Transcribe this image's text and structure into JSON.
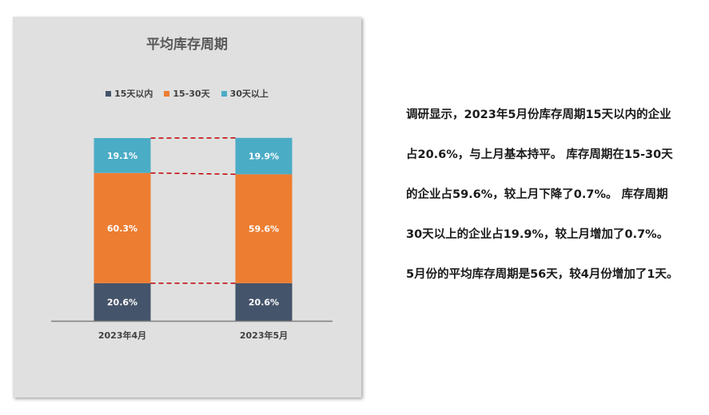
{
  "chart_data": {
    "type": "bar",
    "stacked": true,
    "title": "平均库存周期",
    "categories": [
      "2023年4月",
      "2023年5月"
    ],
    "series": [
      {
        "name": "15天以内",
        "color": "#44546a",
        "values": [
          20.6,
          20.6
        ],
        "labels": [
          "20.6%",
          "20.6%"
        ]
      },
      {
        "name": "15-30天",
        "color": "#ed7d31",
        "values": [
          60.3,
          59.6
        ],
        "labels": [
          "60.3%",
          "59.6%"
        ]
      },
      {
        "name": "30天以上",
        "color": "#4bacc6",
        "values": [
          19.1,
          19.9
        ],
        "labels": [
          "19.1%",
          "19.9%"
        ]
      }
    ],
    "ylim": [
      0,
      100
    ],
    "legend_position": "top",
    "connector_lines": true,
    "connector_color": "#c00000",
    "background": "#e0e0e0"
  },
  "text": {
    "lines": [
      "调研显示，2023年5月份库存周期15天以内的企业",
      "占20.6%，与上月基本持平。 库存周期在15-30天",
      "的企业占59.6%，较上月下降了0.7%。 库存周期",
      "30天以上的企业占19.9%，较上月增加了0.7%。",
      "5月份的平均库存周期是56天，较4月份增加了1天。"
    ]
  }
}
